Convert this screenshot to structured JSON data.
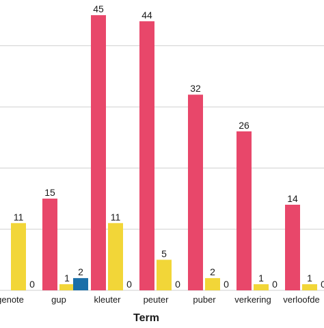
{
  "chart_data": {
    "type": "bar",
    "xlabel": "Term",
    "ylabel": "",
    "ylim": [
      0,
      50
    ],
    "grid": true,
    "categories": [
      "genote",
      "gup",
      "kleuter",
      "peuter",
      "puber",
      "verkering",
      "verloofde",
      ""
    ],
    "series": [
      {
        "color": "#1a6fa8",
        "values": [
          0,
          0,
          2,
          0,
          0,
          0,
          0,
          0
        ]
      },
      {
        "color": "#e8476a",
        "values": [
          null,
          15,
          45,
          44,
          32,
          26,
          14,
          null
        ]
      },
      {
        "color": "#f2d638",
        "values": [
          11,
          1,
          11,
          5,
          2,
          1,
          1,
          null
        ]
      }
    ]
  }
}
